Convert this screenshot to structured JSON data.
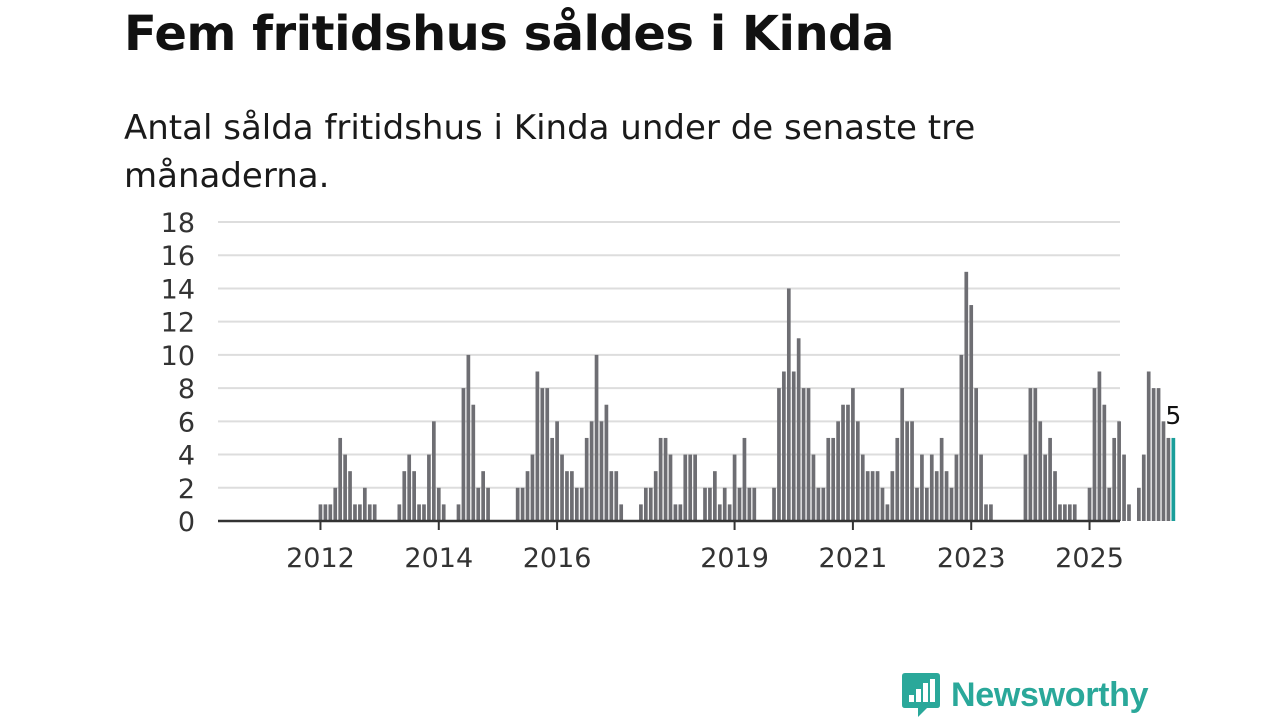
{
  "title": "Fem fritidshus såldes i Kinda",
  "subtitle": "Antal sålda fritidshus i Kinda under de senaste tre månaderna.",
  "logo": {
    "name": "Newsworthy",
    "icon": "newsworthy-logo-icon",
    "color": "#2aa89a"
  },
  "colors": {
    "bar": "#6e6e73",
    "highlight": "#1a9e9a",
    "grid": "#dddddd",
    "axis": "#333333"
  },
  "chart_data": {
    "type": "bar",
    "title": "Fem fritidshus såldes i Kinda",
    "subtitle": "Antal sålda fritidshus i Kinda under de senaste tre månaderna.",
    "xlabel": "",
    "ylabel": "",
    "ylim": [
      0,
      18
    ],
    "yticks": [
      0,
      2,
      4,
      6,
      8,
      10,
      12,
      14,
      16,
      18
    ],
    "grid": true,
    "x_start": "2011-01",
    "frequency": "monthly",
    "xticks": [
      {
        "label": "2012",
        "index": 12
      },
      {
        "label": "2014",
        "index": 36
      },
      {
        "label": "2016",
        "index": 60
      },
      {
        "label": "2019",
        "index": 96
      },
      {
        "label": "2021",
        "index": 120
      },
      {
        "label": "2023",
        "index": 144
      },
      {
        "label": "2025",
        "index": 168
      }
    ],
    "values": [
      0,
      0,
      0,
      0,
      0,
      0,
      0,
      0,
      0,
      0,
      0,
      0,
      1,
      1,
      1,
      2,
      5,
      4,
      3,
      1,
      1,
      2,
      1,
      1,
      0,
      0,
      0,
      0,
      1,
      3,
      4,
      3,
      1,
      1,
      4,
      6,
      2,
      1,
      0,
      0,
      1,
      8,
      10,
      7,
      2,
      3,
      2,
      0,
      0,
      0,
      0,
      0,
      2,
      2,
      3,
      4,
      9,
      8,
      8,
      5,
      6,
      4,
      3,
      3,
      2,
      2,
      5,
      6,
      10,
      6,
      7,
      3,
      3,
      1,
      0,
      0,
      0,
      1,
      2,
      2,
      3,
      5,
      5,
      4,
      1,
      1,
      4,
      4,
      4,
      0,
      2,
      2,
      3,
      1,
      2,
      1,
      4,
      2,
      5,
      2,
      2,
      0,
      0,
      0,
      2,
      8,
      9,
      14,
      9,
      11,
      8,
      8,
      4,
      2,
      2,
      5,
      5,
      6,
      7,
      7,
      8,
      6,
      4,
      3,
      3,
      3,
      2,
      1,
      3,
      5,
      8,
      6,
      6,
      2,
      4,
      2,
      4,
      3,
      5,
      3,
      2,
      4,
      10,
      15,
      13,
      8,
      4,
      1,
      1,
      0,
      0,
      0,
      0,
      0,
      0,
      4,
      8,
      8,
      6,
      4,
      5,
      3,
      1,
      1,
      1,
      1,
      0,
      0,
      2,
      8,
      9,
      7,
      2,
      5,
      6,
      4,
      1,
      0,
      2,
      4,
      9,
      8,
      8,
      6,
      5,
      5
    ],
    "annotations": [
      {
        "index": 185,
        "label": "5",
        "highlight": true
      }
    ]
  }
}
